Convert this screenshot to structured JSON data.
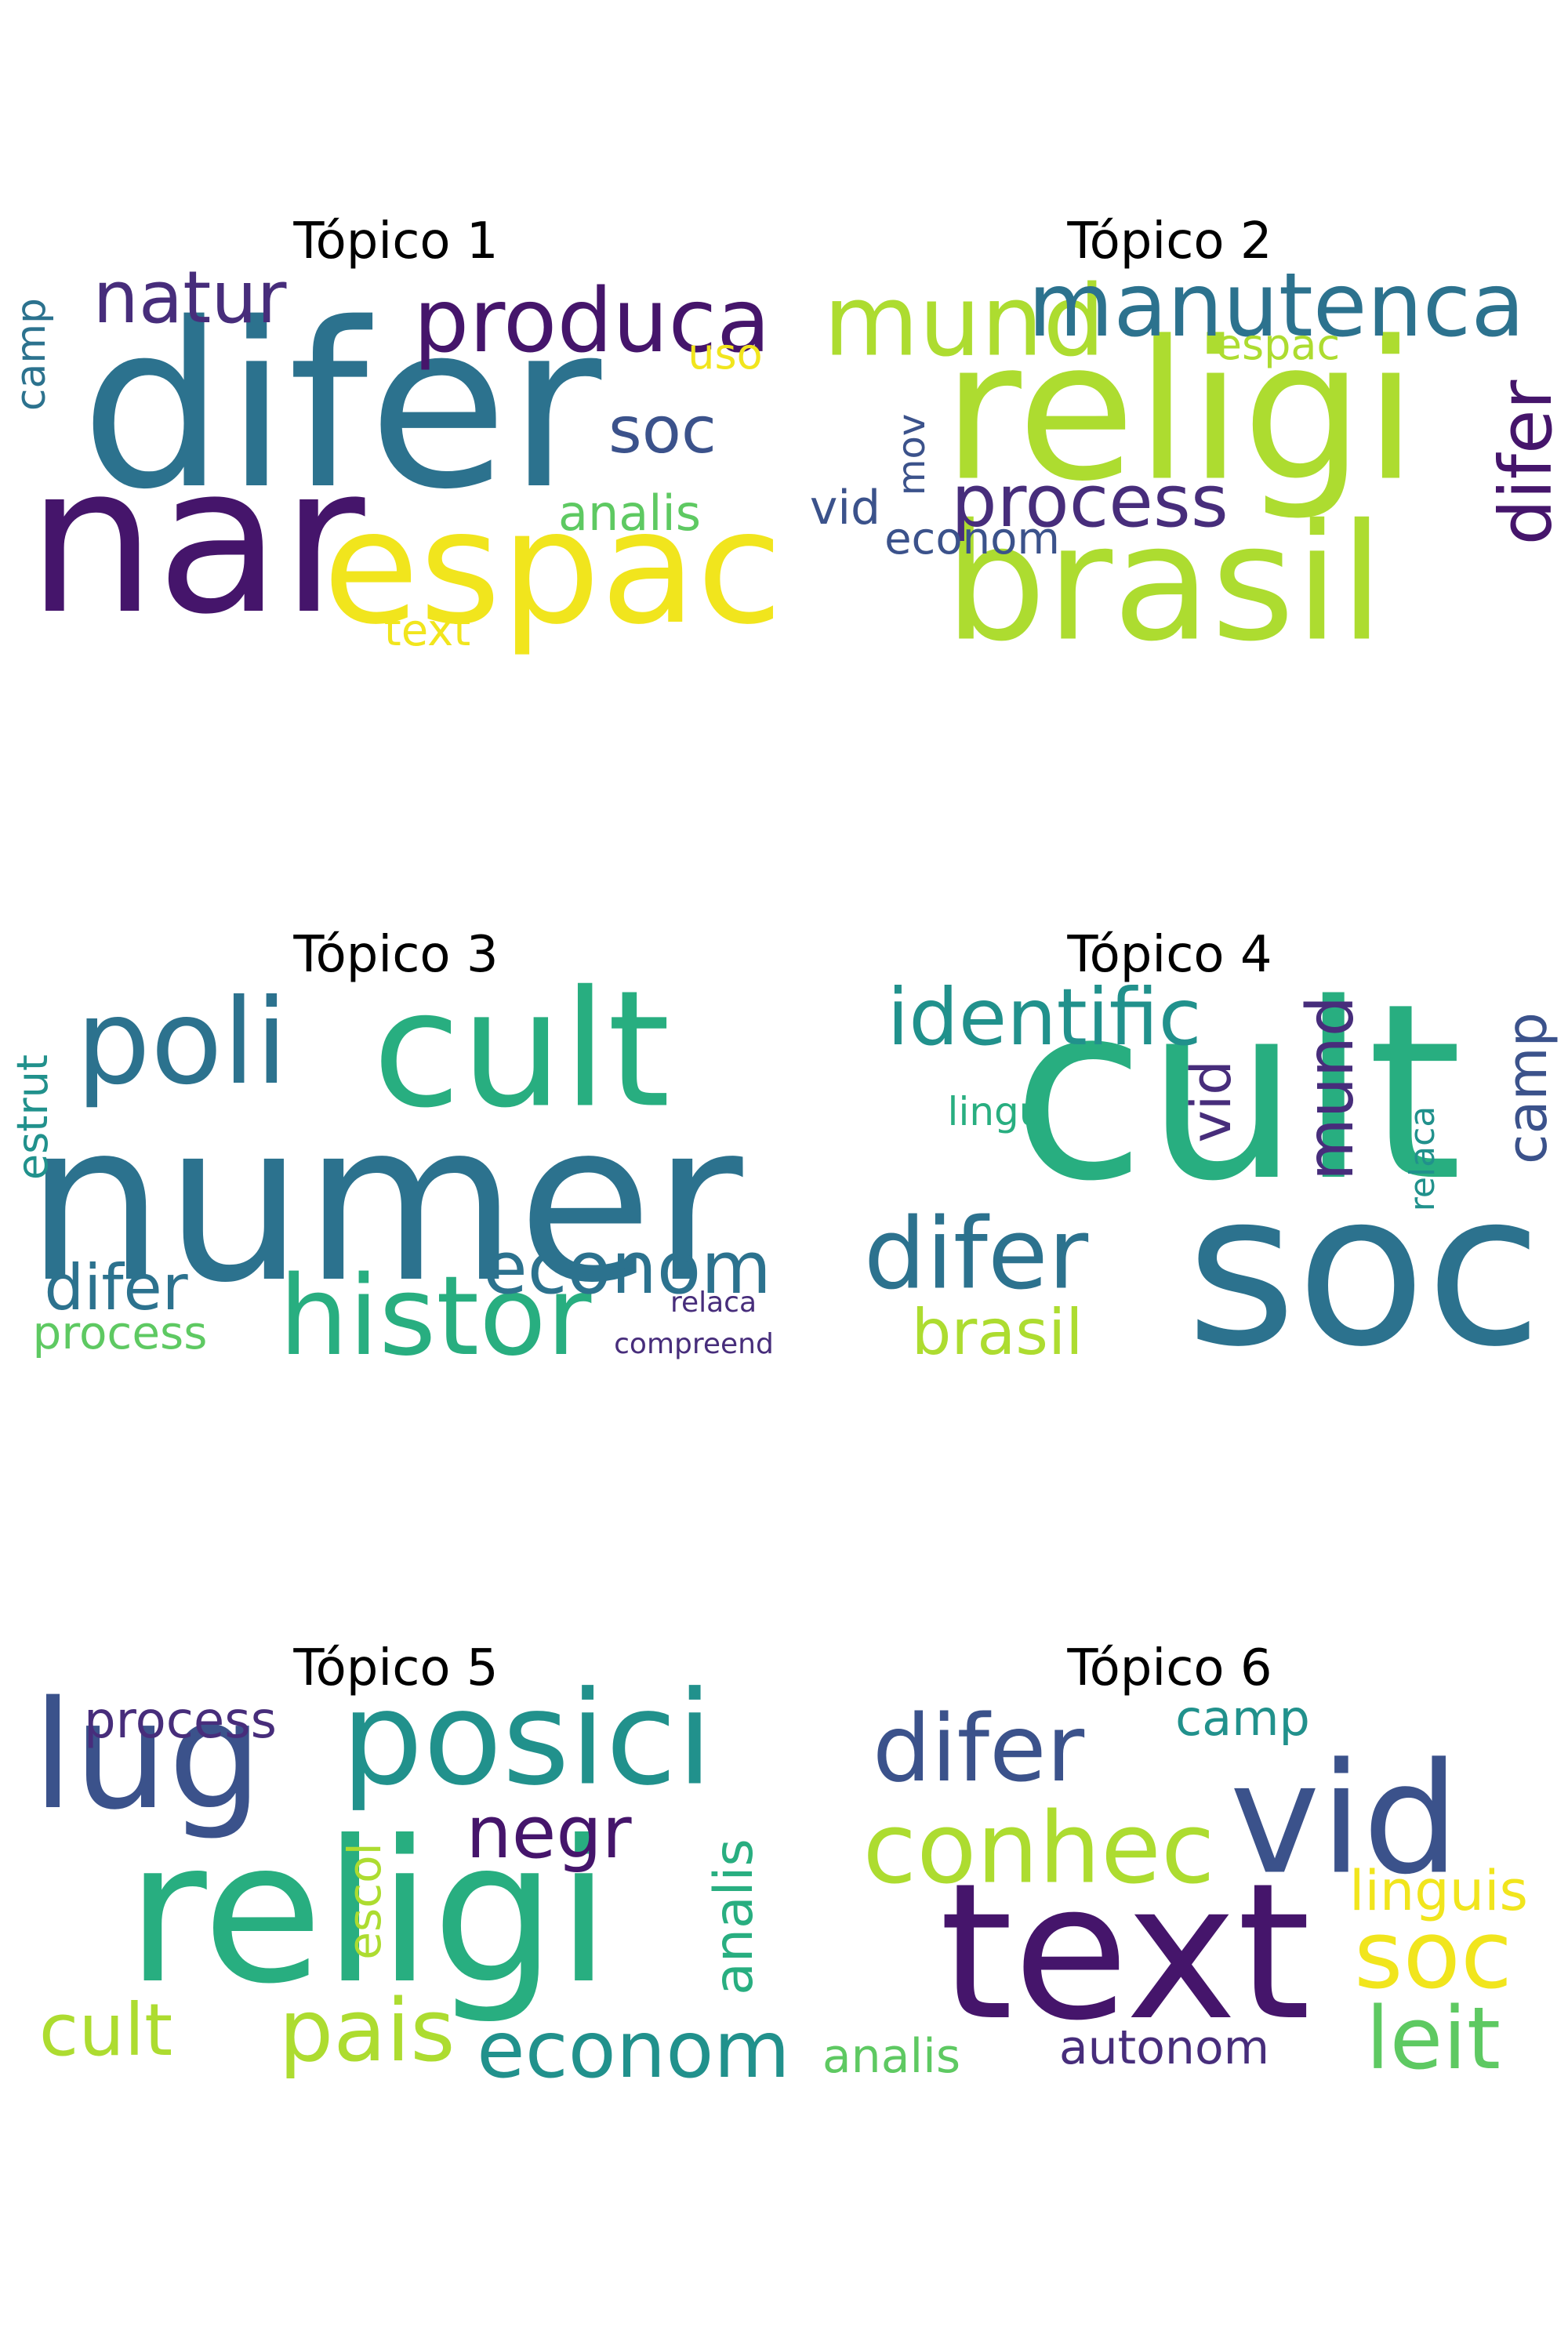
{
  "colors": {
    "v_purple": "#45156b",
    "v_indigo": "#472d7b",
    "v_blue": "#3b528b",
    "v_steel": "#2c728e",
    "v_teal": "#21918c",
    "v_green": "#28ae80",
    "v_mint": "#5ec962",
    "v_lime": "#addc30",
    "v_yellow": "#f1e51d"
  },
  "topics": [
    {
      "title": "Tópico 1",
      "words": [
        {
          "text": "difer",
          "color": "v_steel"
        },
        {
          "text": "nar",
          "color": "v_purple"
        },
        {
          "text": "espac",
          "color": "v_yellow"
        },
        {
          "text": "produca",
          "color": "v_purple"
        },
        {
          "text": "natur",
          "color": "v_indigo"
        },
        {
          "text": "soc",
          "color": "v_blue"
        },
        {
          "text": "analis",
          "color": "v_mint"
        },
        {
          "text": "uso",
          "color": "v_yellow"
        },
        {
          "text": "text",
          "color": "v_yellow"
        },
        {
          "text": "camp",
          "color": "v_steel"
        }
      ]
    },
    {
      "title": "Tópico 2",
      "words": [
        {
          "text": "religi",
          "color": "v_lime"
        },
        {
          "text": "brasil",
          "color": "v_lime"
        },
        {
          "text": "mund",
          "color": "v_lime"
        },
        {
          "text": "manutenca",
          "color": "v_steel"
        },
        {
          "text": "process",
          "color": "v_indigo"
        },
        {
          "text": "difer",
          "color": "v_purple"
        },
        {
          "text": "espac",
          "color": "v_lime"
        },
        {
          "text": "vid",
          "color": "v_blue"
        },
        {
          "text": "econom",
          "color": "v_blue"
        },
        {
          "text": "mov",
          "color": "v_blue"
        }
      ]
    },
    {
      "title": "Tópico 3",
      "words": [
        {
          "text": "numer",
          "color": "v_steel"
        },
        {
          "text": "cult",
          "color": "v_green"
        },
        {
          "text": "poli",
          "color": "v_steel"
        },
        {
          "text": "histor",
          "color": "v_green"
        },
        {
          "text": "econom",
          "color": "v_steel"
        },
        {
          "text": "difer",
          "color": "v_steel"
        },
        {
          "text": "process",
          "color": "v_mint"
        },
        {
          "text": "estrut",
          "color": "v_teal"
        },
        {
          "text": "relaca",
          "color": "v_indigo"
        },
        {
          "text": "compreend",
          "color": "v_indigo"
        }
      ]
    },
    {
      "title": "Tópico 4",
      "words": [
        {
          "text": "cult",
          "color": "v_green"
        },
        {
          "text": "soc",
          "color": "v_steel"
        },
        {
          "text": "identific",
          "color": "v_teal"
        },
        {
          "text": "difer",
          "color": "v_steel"
        },
        {
          "text": "brasil",
          "color": "v_lime"
        },
        {
          "text": "mund",
          "color": "v_indigo"
        },
        {
          "text": "camp",
          "color": "v_blue"
        },
        {
          "text": "vid",
          "color": "v_indigo"
        },
        {
          "text": "lingu",
          "color": "v_green"
        },
        {
          "text": "relaca",
          "color": "v_teal"
        }
      ]
    },
    {
      "title": "Tópico 5",
      "words": [
        {
          "text": "religi",
          "color": "v_green"
        },
        {
          "text": "posici",
          "color": "v_teal"
        },
        {
          "text": "lug",
          "color": "v_blue"
        },
        {
          "text": "econom",
          "color": "v_teal"
        },
        {
          "text": "pais",
          "color": "v_lime"
        },
        {
          "text": "negr",
          "color": "v_purple"
        },
        {
          "text": "cult",
          "color": "v_lime"
        },
        {
          "text": "process",
          "color": "v_indigo"
        },
        {
          "text": "escol",
          "color": "v_lime"
        },
        {
          "text": "analis",
          "color": "v_green"
        }
      ]
    },
    {
      "title": "Tópico 6",
      "words": [
        {
          "text": "text",
          "color": "v_purple"
        },
        {
          "text": "vid",
          "color": "v_blue"
        },
        {
          "text": "conhec",
          "color": "v_lime"
        },
        {
          "text": "difer",
          "color": "v_blue"
        },
        {
          "text": "soc",
          "color": "v_yellow"
        },
        {
          "text": "leit",
          "color": "v_mint"
        },
        {
          "text": "linguis",
          "color": "v_yellow"
        },
        {
          "text": "autonom",
          "color": "v_indigo"
        },
        {
          "text": "camp",
          "color": "v_teal"
        },
        {
          "text": "analis",
          "color": "v_mint"
        }
      ]
    }
  ]
}
